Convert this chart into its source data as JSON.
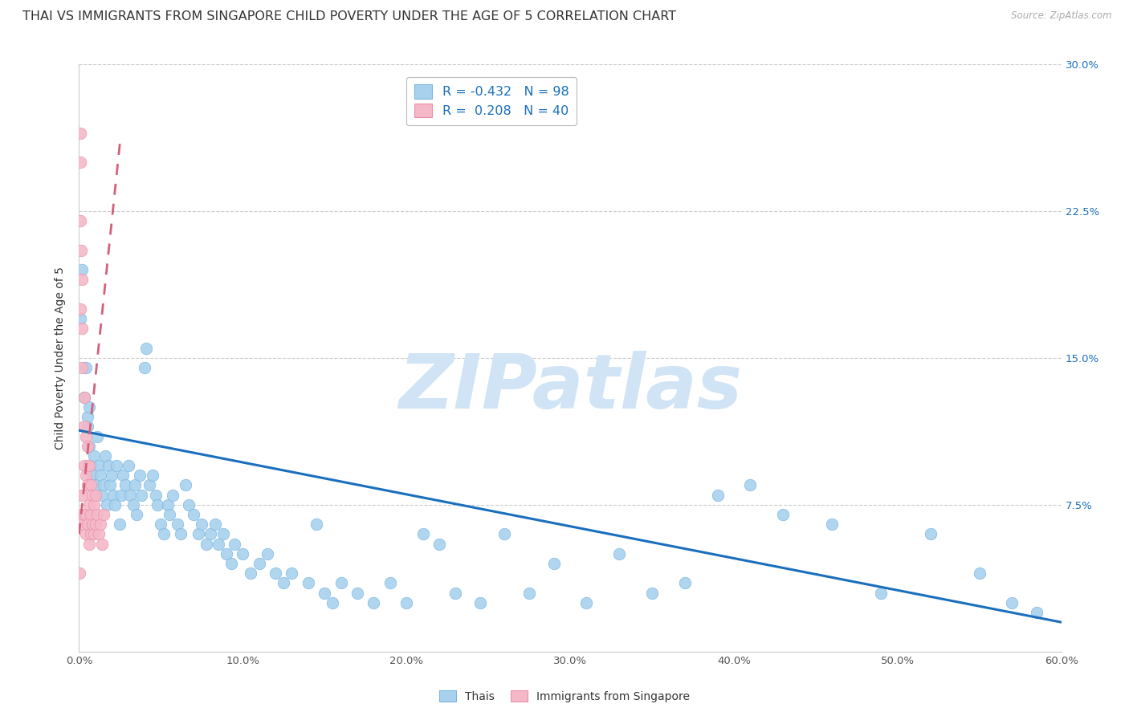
{
  "title": "THAI VS IMMIGRANTS FROM SINGAPORE CHILD POVERTY UNDER THE AGE OF 5 CORRELATION CHART",
  "source": "Source: ZipAtlas.com",
  "ylabel": "Child Poverty Under the Age of 5",
  "xlim": [
    0.0,
    0.6
  ],
  "ylim": [
    0.0,
    0.3
  ],
  "xticks": [
    0.0,
    0.1,
    0.2,
    0.3,
    0.4,
    0.5,
    0.6
  ],
  "xtick_labels": [
    "0.0%",
    "10.0%",
    "20.0%",
    "30.0%",
    "40.0%",
    "50.0%",
    "60.0%"
  ],
  "yticks": [
    0.0,
    0.075,
    0.15,
    0.225,
    0.3
  ],
  "ytick_labels": [
    "",
    "7.5%",
    "15.0%",
    "22.5%",
    "30.0%"
  ],
  "thai_color": "#a8d1ee",
  "thai_edge": "#7ab5de",
  "singapore_color": "#f5b8c8",
  "singapore_edge": "#e890a8",
  "thai_R": -0.432,
  "thai_N": 98,
  "singapore_R": 0.208,
  "singapore_N": 40,
  "legend_label_thai": "Thais",
  "legend_label_singapore": "Immigrants from Singapore",
  "thai_line_color": "#1a6fbd",
  "singapore_line_color": "#d4607a",
  "watermark": "ZIPatlas",
  "watermark_color": "#d0e4f5",
  "title_fontsize": 11.5,
  "axis_label_fontsize": 10,
  "tick_fontsize": 9.5,
  "thai_x": [
    0.001,
    0.002,
    0.003,
    0.004,
    0.005,
    0.005,
    0.006,
    0.006,
    0.007,
    0.008,
    0.009,
    0.01,
    0.011,
    0.012,
    0.013,
    0.014,
    0.015,
    0.016,
    0.017,
    0.018,
    0.019,
    0.02,
    0.021,
    0.022,
    0.023,
    0.025,
    0.026,
    0.027,
    0.028,
    0.03,
    0.031,
    0.033,
    0.034,
    0.035,
    0.037,
    0.038,
    0.04,
    0.041,
    0.043,
    0.045,
    0.047,
    0.048,
    0.05,
    0.052,
    0.054,
    0.055,
    0.057,
    0.06,
    0.062,
    0.065,
    0.067,
    0.07,
    0.073,
    0.075,
    0.078,
    0.08,
    0.083,
    0.085,
    0.088,
    0.09,
    0.093,
    0.095,
    0.1,
    0.105,
    0.11,
    0.115,
    0.12,
    0.125,
    0.13,
    0.14,
    0.145,
    0.15,
    0.155,
    0.16,
    0.17,
    0.18,
    0.19,
    0.2,
    0.21,
    0.22,
    0.23,
    0.245,
    0.26,
    0.275,
    0.29,
    0.31,
    0.33,
    0.35,
    0.37,
    0.39,
    0.41,
    0.43,
    0.46,
    0.49,
    0.52,
    0.55,
    0.57,
    0.585
  ],
  "thai_y": [
    0.17,
    0.195,
    0.13,
    0.145,
    0.115,
    0.12,
    0.105,
    0.125,
    0.095,
    0.09,
    0.1,
    0.085,
    0.11,
    0.095,
    0.09,
    0.08,
    0.085,
    0.1,
    0.075,
    0.095,
    0.085,
    0.09,
    0.08,
    0.075,
    0.095,
    0.065,
    0.08,
    0.09,
    0.085,
    0.095,
    0.08,
    0.075,
    0.085,
    0.07,
    0.09,
    0.08,
    0.145,
    0.155,
    0.085,
    0.09,
    0.08,
    0.075,
    0.065,
    0.06,
    0.075,
    0.07,
    0.08,
    0.065,
    0.06,
    0.085,
    0.075,
    0.07,
    0.06,
    0.065,
    0.055,
    0.06,
    0.065,
    0.055,
    0.06,
    0.05,
    0.045,
    0.055,
    0.05,
    0.04,
    0.045,
    0.05,
    0.04,
    0.035,
    0.04,
    0.035,
    0.065,
    0.03,
    0.025,
    0.035,
    0.03,
    0.025,
    0.035,
    0.025,
    0.06,
    0.055,
    0.03,
    0.025,
    0.06,
    0.03,
    0.045,
    0.025,
    0.05,
    0.03,
    0.035,
    0.08,
    0.085,
    0.07,
    0.065,
    0.03,
    0.06,
    0.04,
    0.025,
    0.02
  ],
  "singapore_x": [
    0.0005,
    0.0008,
    0.001,
    0.001,
    0.001,
    0.001,
    0.0015,
    0.002,
    0.002,
    0.002,
    0.002,
    0.002,
    0.003,
    0.003,
    0.003,
    0.003,
    0.004,
    0.004,
    0.004,
    0.004,
    0.005,
    0.005,
    0.005,
    0.006,
    0.006,
    0.006,
    0.007,
    0.007,
    0.007,
    0.008,
    0.008,
    0.009,
    0.009,
    0.01,
    0.01,
    0.011,
    0.012,
    0.013,
    0.014,
    0.015
  ],
  "singapore_y": [
    0.04,
    0.265,
    0.25,
    0.22,
    0.175,
    0.07,
    0.205,
    0.19,
    0.165,
    0.145,
    0.08,
    0.065,
    0.13,
    0.115,
    0.095,
    0.07,
    0.11,
    0.09,
    0.07,
    0.06,
    0.105,
    0.085,
    0.065,
    0.095,
    0.075,
    0.055,
    0.085,
    0.07,
    0.06,
    0.08,
    0.065,
    0.075,
    0.06,
    0.08,
    0.065,
    0.07,
    0.06,
    0.065,
    0.055,
    0.07
  ]
}
